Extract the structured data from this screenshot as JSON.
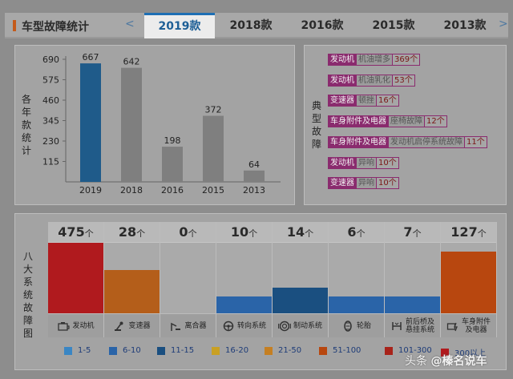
{
  "header": {
    "title": "车型故障统计",
    "prev_arrow": "<",
    "next_arrow": ">",
    "tabs": [
      {
        "label": "2019款",
        "active": true
      },
      {
        "label": "2018款",
        "active": false
      },
      {
        "label": "2016款",
        "active": false
      },
      {
        "label": "2015款",
        "active": false
      },
      {
        "label": "2013款",
        "active": false
      }
    ]
  },
  "yearly": {
    "ylabel": "各年款统计",
    "chart_data": {
      "type": "bar",
      "categories": [
        "2019",
        "2018",
        "2016",
        "2015",
        "2013"
      ],
      "values": [
        667,
        642,
        198,
        372,
        64
      ],
      "yticks": [
        115,
        230,
        345,
        460,
        575,
        690
      ],
      "ylim": [
        0,
        690
      ],
      "highlight_index": 0,
      "colors": {
        "highlight": "#1f5b8a",
        "normal": "#7f7f7f"
      }
    }
  },
  "typical": {
    "label": "典型故障",
    "items": [
      {
        "system": "发动机",
        "desc": "机油增多",
        "count": "369个"
      },
      {
        "system": "发动机",
        "desc": "机油乳化",
        "count": "53个"
      },
      {
        "system": "变速器",
        "desc": "顿挫",
        "count": "16个"
      },
      {
        "system": "车身附件及电器",
        "desc": "座椅故障",
        "count": "12个"
      },
      {
        "system": "车身附件及电器",
        "desc": "发动机启停系统故障",
        "count": "11个"
      },
      {
        "system": "发动机",
        "desc": "异响",
        "count": "10个"
      },
      {
        "system": "变速器",
        "desc": "异响",
        "count": "10个"
      }
    ]
  },
  "systems": {
    "label": "八大系统故障图",
    "unit": "个",
    "items": [
      {
        "name": "发动机",
        "count": "475",
        "level": 1.0,
        "color": "#b01a1e",
        "icon": "engine-icon"
      },
      {
        "name": "变速器",
        "count": "28",
        "level": 0.61,
        "color": "#b45e1a",
        "icon": "gearbox-icon"
      },
      {
        "name": "离合器",
        "count": "0",
        "level": 0,
        "color": "#aaaaaa",
        "icon": "clutch-icon"
      },
      {
        "name": "转向系统",
        "count": "10",
        "level": 0.24,
        "color": "#2a64a8",
        "icon": "steering-icon"
      },
      {
        "name": "制动系统",
        "count": "14",
        "level": 0.36,
        "color": "#1a4f80",
        "icon": "brake-icon"
      },
      {
        "name": "轮胎",
        "count": "6",
        "level": 0.24,
        "color": "#2a64a8",
        "icon": "tire-icon"
      },
      {
        "name": "前后桥及悬挂系统",
        "count": "7",
        "level": 0.24,
        "color": "#2a64a8",
        "icon": "suspension-icon"
      },
      {
        "name": "车身附件及电器",
        "count": "127",
        "level": 0.87,
        "color": "#b8470f",
        "icon": "body-electric-icon"
      }
    ]
  },
  "legend": [
    {
      "label": "1-5",
      "color": "#3a86c4"
    },
    {
      "label": "6-10",
      "color": "#2a64a8"
    },
    {
      "label": "11-15",
      "color": "#1a4f80"
    },
    {
      "label": "16-20",
      "color": "#c9a023"
    },
    {
      "label": "21-50",
      "color": "#c57f22"
    },
    {
      "label": "51-100",
      "color": "#b8470f"
    },
    {
      "label": "101-300",
      "color": "#a8231a"
    },
    {
      "label": "300以上",
      "color": "#b01a1e"
    }
  ],
  "watermark": {
    "prefix": "头条",
    "handle": "@榛名说车"
  }
}
